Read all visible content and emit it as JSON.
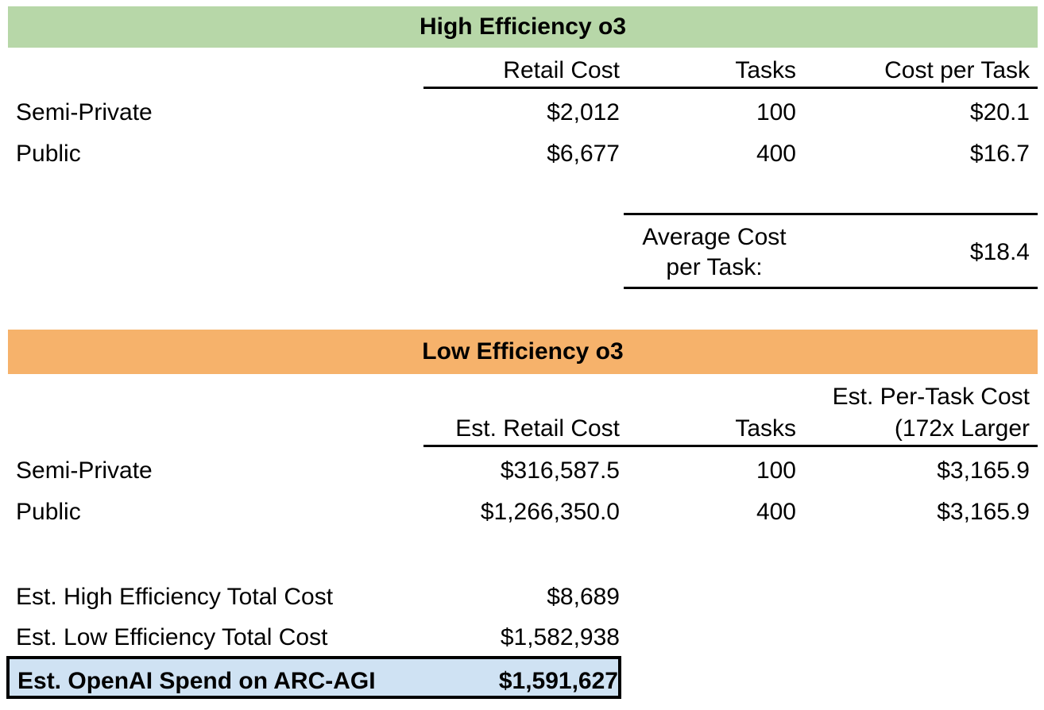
{
  "colors": {
    "high_band": "#b7d7a8",
    "low_band": "#f6b26b",
    "total_box": "#cfe2f3"
  },
  "high": {
    "title": "High Efficiency o3",
    "headers": {
      "retail": "Retail Cost",
      "tasks": "Tasks",
      "cost_per_task": "Cost per Task"
    },
    "rows": [
      {
        "label": "Semi-Private",
        "retail": "$2,012",
        "tasks": "100",
        "cpt": "$20.1"
      },
      {
        "label": "Public",
        "retail": "$6,677",
        "tasks": "400",
        "cpt": "$16.7"
      }
    ],
    "avg_label_1": "Average Cost",
    "avg_label_2": "per Task:",
    "avg_value": "$18.4"
  },
  "low": {
    "title": "Low Efficiency o3",
    "headers": {
      "retail": "Est. Retail Cost",
      "tasks": "Tasks",
      "cpt_1": "Est. Per-Task Cost",
      "cpt_2": "(172x Larger"
    },
    "rows": [
      {
        "label": "Semi-Private",
        "retail": "$316,587.5",
        "tasks": "100",
        "cpt": "$3,165.9"
      },
      {
        "label": "Public",
        "retail": "$1,266,350.0",
        "tasks": "400",
        "cpt": "$3,165.9"
      }
    ]
  },
  "totals": {
    "high_label": "Est. High Efficiency Total Cost",
    "high_value": "$8,689",
    "low_label": "Est. Low Efficiency Total Cost",
    "low_value": "$1,582,938",
    "spend_label": "Est. OpenAI Spend on ARC-AGI",
    "spend_value": "$1,591,627"
  }
}
